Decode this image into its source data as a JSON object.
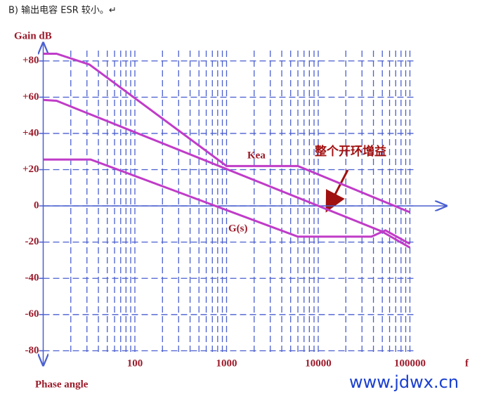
{
  "header": "B) 输出电容 ESR 较小。↵",
  "watermark": "www.jdwx.cn",
  "chart_data": {
    "type": "line",
    "log_x": true,
    "grid": true,
    "ylabel": "Gain dB",
    "xlabel": "f",
    "bottom_label": "Phase angle",
    "annotations": {
      "kea": "Kea",
      "gs": "G(s)",
      "total": "整个开环增益"
    },
    "xlim": [
      10,
      250000
    ],
    "ylim": [
      -88,
      90
    ],
    "xticks": [
      100,
      1000,
      10000,
      100000
    ],
    "yticks": [
      {
        "value": 80,
        "label": "+80"
      },
      {
        "value": 60,
        "label": "+60"
      },
      {
        "value": 40,
        "label": "+40"
      },
      {
        "value": 20,
        "label": "+20"
      },
      0,
      -20,
      -40,
      -60,
      -80
    ],
    "series": [
      {
        "name": "Kea",
        "color": "#c03cc8",
        "x": [
          10,
          14,
          32,
          1000,
          6000,
          100000
        ],
        "values": [
          84,
          84,
          78,
          22,
          22,
          -3.5
        ]
      },
      {
        "name": "整个开环增益",
        "color": "#c03cc8",
        "x": [
          10,
          14,
          49000,
          100000
        ],
        "values": [
          58.5,
          58,
          -14,
          -23
        ]
      },
      {
        "name": "G(s)",
        "color": "#c03cc8",
        "x": [
          10,
          33,
          6000,
          38000,
          54000,
          100000
        ],
        "values": [
          25.6,
          25.6,
          -17,
          -17,
          -13.5,
          -21
        ]
      }
    ]
  }
}
